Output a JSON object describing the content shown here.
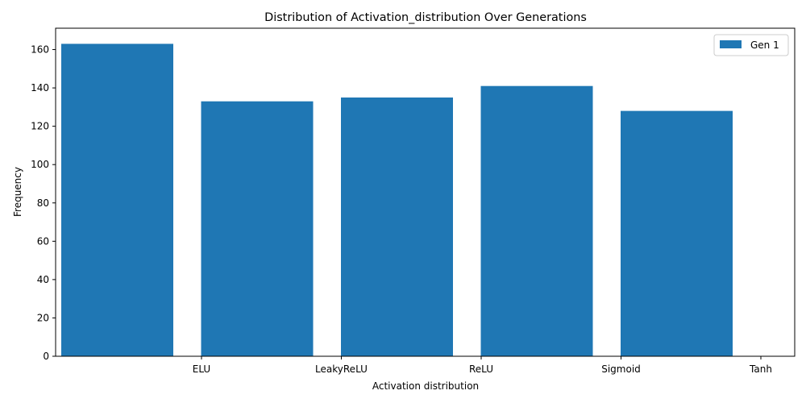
{
  "chart_data": {
    "type": "bar",
    "title": "Distribution of Activation_distribution Over Generations",
    "xlabel": "Activation distribution",
    "ylabel": "Frequency",
    "categories": [
      "ELU",
      "LeakyReLU",
      "ReLU",
      "Sigmoid",
      "Tanh"
    ],
    "series": [
      {
        "name": "Gen 1",
        "values": [
          163,
          133,
          135,
          141,
          128
        ],
        "color": "#1f77b4"
      }
    ],
    "ylim": [
      0,
      171.15
    ],
    "yticks": [
      0,
      20,
      40,
      60,
      80,
      100,
      120,
      140,
      160
    ],
    "grid": false,
    "legend_position": "top-right"
  }
}
